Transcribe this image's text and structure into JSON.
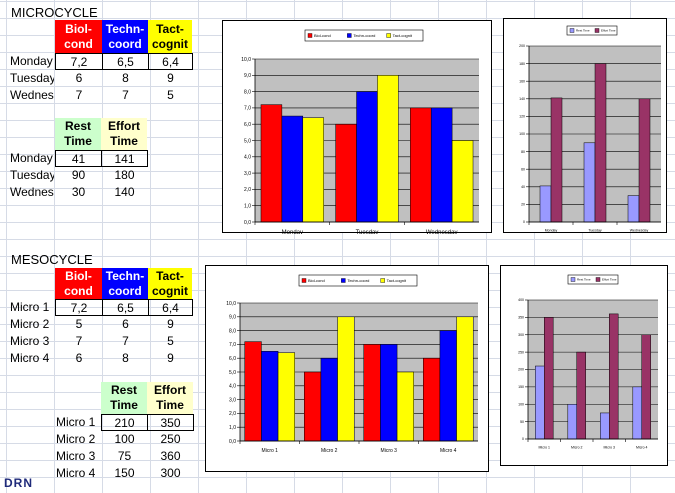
{
  "micro": {
    "title": "MICROCYCLE",
    "headers": [
      {
        "line1": "Biol-",
        "line2": "cond",
        "bg": "#ff0000",
        "fg": "#ffffff"
      },
      {
        "line1": "Techn-",
        "line2": "coord",
        "bg": "#0000ff",
        "fg": "#ffffff"
      },
      {
        "line1": "Tact-",
        "line2": "cognit",
        "bg": "#ffff00",
        "fg": "#000000"
      }
    ],
    "rows": [
      {
        "label": "Monday",
        "values": [
          "7,2",
          "6,5",
          "6,4"
        ]
      },
      {
        "label": "Tuesday",
        "values": [
          "6",
          "8",
          "9"
        ]
      },
      {
        "label": "Wednesday",
        "values": [
          "7",
          "7",
          "5"
        ]
      }
    ],
    "time_headers": [
      {
        "line1": "Rest",
        "line2": "Time",
        "bg": "#ccffcc"
      },
      {
        "line1": "Effort",
        "line2": "Time",
        "bg": "#ffffcc"
      }
    ],
    "time_rows": [
      {
        "label": "Monday",
        "values": [
          "41",
          "141"
        ]
      },
      {
        "label": "Tuesday",
        "values": [
          "90",
          "180"
        ]
      },
      {
        "label": "Wednesday",
        "values": [
          "30",
          "140"
        ]
      }
    ]
  },
  "meso": {
    "title": "MESOCYCLE",
    "headers": [
      {
        "line1": "Biol-",
        "line2": "cond",
        "bg": "#ff0000",
        "fg": "#ffffff"
      },
      {
        "line1": "Techn-",
        "line2": "coord",
        "bg": "#0000ff",
        "fg": "#ffffff"
      },
      {
        "line1": "Tact-",
        "line2": "cognit",
        "bg": "#ffff00",
        "fg": "#000000"
      }
    ],
    "rows": [
      {
        "label": "Micro 1",
        "values": [
          "7,2",
          "6,5",
          "6,4"
        ]
      },
      {
        "label": "Micro 2",
        "values": [
          "5",
          "6",
          "9"
        ]
      },
      {
        "label": "Micro 3",
        "values": [
          "7",
          "7",
          "5"
        ]
      },
      {
        "label": "Micro 4",
        "values": [
          "6",
          "8",
          "9"
        ]
      }
    ],
    "time_headers": [
      {
        "line1": "Rest",
        "line2": "Time",
        "bg": "#ccffcc"
      },
      {
        "line1": "Effort",
        "line2": "Time",
        "bg": "#ffffcc"
      }
    ],
    "time_rows": [
      {
        "label": "Micro 1",
        "values": [
          "210",
          "350"
        ]
      },
      {
        "label": "Micro 2",
        "values": [
          "100",
          "250"
        ]
      },
      {
        "label": "Micro 3",
        "values": [
          "75",
          "360"
        ]
      },
      {
        "label": "Micro 4",
        "values": [
          "150",
          "300"
        ]
      }
    ]
  },
  "signature": "DRN",
  "chart_data": [
    {
      "type": "bar",
      "categories": [
        "Monday",
        "Tuesday",
        "Wednesday"
      ],
      "series": [
        {
          "name": "Biol-cond",
          "color": "#ff0000",
          "values": [
            7.2,
            6,
            7
          ]
        },
        {
          "name": "Techn-coord",
          "color": "#0000ff",
          "values": [
            6.5,
            8,
            7
          ]
        },
        {
          "name": "Tact-cognit",
          "color": "#ffff00",
          "values": [
            6.4,
            9,
            5
          ]
        }
      ],
      "ylim": [
        0,
        10
      ],
      "yticks": [
        "0,0",
        "1,0",
        "2,0",
        "3,0",
        "4,0",
        "5,0",
        "6,0",
        "7,0",
        "8,0",
        "9,0",
        "10,0"
      ],
      "legend": "top",
      "grid": true
    },
    {
      "type": "bar",
      "categories": [
        "Monday",
        "Tuesday",
        "Wednesday"
      ],
      "series": [
        {
          "name": "Rest Time",
          "color": "#9999ff",
          "values": [
            41,
            90,
            30
          ]
        },
        {
          "name": "Effort Time",
          "color": "#993366",
          "values": [
            141,
            180,
            140
          ]
        }
      ],
      "ylim": [
        0,
        200
      ],
      "yticks": [
        "0",
        "20",
        "40",
        "60",
        "80",
        "100",
        "120",
        "140",
        "160",
        "180",
        "200"
      ],
      "legend": "top",
      "grid": true
    },
    {
      "type": "bar",
      "categories": [
        "Micro 1",
        "Micro 2",
        "Micro 3",
        "Micro 4"
      ],
      "series": [
        {
          "name": "Biol-cond",
          "color": "#ff0000",
          "values": [
            7.2,
            5,
            7,
            6
          ]
        },
        {
          "name": "Techn-coord",
          "color": "#0000ff",
          "values": [
            6.5,
            6,
            7,
            8
          ]
        },
        {
          "name": "Tact-cognit",
          "color": "#ffff00",
          "values": [
            6.4,
            9,
            5,
            9
          ]
        }
      ],
      "ylim": [
        0,
        10
      ],
      "yticks": [
        "0,0",
        "1,0",
        "2,0",
        "3,0",
        "4,0",
        "5,0",
        "6,0",
        "7,0",
        "8,0",
        "9,0",
        "10,0"
      ],
      "legend": "top",
      "grid": true
    },
    {
      "type": "bar",
      "categories": [
        "Micro 1",
        "Micro 2",
        "Micro 3",
        "Micro 4"
      ],
      "series": [
        {
          "name": "Rest Time",
          "color": "#9999ff",
          "values": [
            210,
            100,
            75,
            150
          ]
        },
        {
          "name": "Effort Time",
          "color": "#993366",
          "values": [
            350,
            250,
            360,
            300
          ]
        }
      ],
      "ylim": [
        0,
        400
      ],
      "yticks": [
        "0",
        "50",
        "100",
        "150",
        "200",
        "250",
        "300",
        "350",
        "400"
      ],
      "legend": "top",
      "grid": true
    }
  ]
}
